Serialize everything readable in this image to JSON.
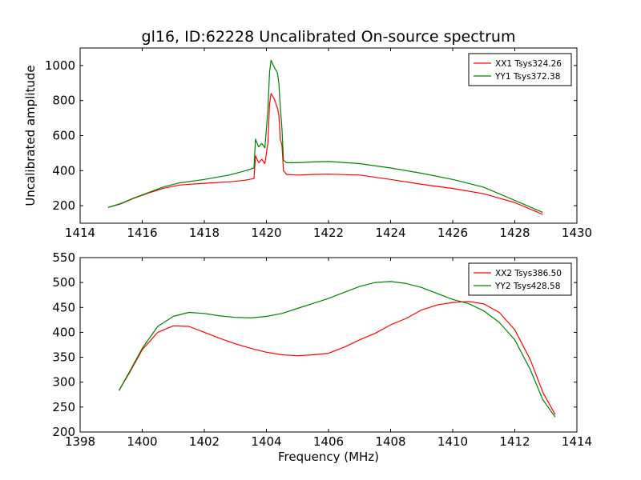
{
  "chart_data": [
    {
      "type": "line",
      "title": "gl16, ID:62228 Uncalibrated On-source spectrum",
      "xlabel": "",
      "ylabel": "Uncalibrated amplitude",
      "xlim": [
        1414,
        1430
      ],
      "ylim": [
        100,
        1100
      ],
      "xticks": [
        "1414",
        "1416",
        "1418",
        "1420",
        "1422",
        "1424",
        "1426",
        "1428",
        "1430"
      ],
      "yticks": [
        "200",
        "400",
        "600",
        "800",
        "1000"
      ],
      "legend_position": "top-right",
      "grid": false,
      "series": [
        {
          "name": "XX1 Tsys324.26",
          "color": "#ff0000",
          "points": [
            [
              1414.9,
              190
            ],
            [
              1415.3,
              210
            ],
            [
              1415.7,
              240
            ],
            [
              1416.2,
              272
            ],
            [
              1416.7,
              300
            ],
            [
              1417.2,
              318
            ],
            [
              1418.0,
              328
            ],
            [
              1418.8,
              336
            ],
            [
              1419.3,
              345
            ],
            [
              1419.6,
              355
            ],
            [
              1419.65,
              485
            ],
            [
              1419.75,
              445
            ],
            [
              1419.85,
              465
            ],
            [
              1419.95,
              440
            ],
            [
              1420.05,
              560
            ],
            [
              1420.1,
              780
            ],
            [
              1420.15,
              840
            ],
            [
              1420.25,
              810
            ],
            [
              1420.35,
              760
            ],
            [
              1420.4,
              720
            ],
            [
              1420.45,
              580
            ],
            [
              1420.5,
              545
            ],
            [
              1420.55,
              400
            ],
            [
              1420.65,
              378
            ],
            [
              1421.0,
              375
            ],
            [
              1421.5,
              378
            ],
            [
              1422.0,
              380
            ],
            [
              1423.0,
              375
            ],
            [
              1424.0,
              350
            ],
            [
              1425.0,
              322
            ],
            [
              1426.0,
              298
            ],
            [
              1427.0,
              268
            ],
            [
              1428.0,
              218
            ],
            [
              1428.9,
              150
            ]
          ]
        },
        {
          "name": "YY1 Tsys372.38",
          "color": "#008000",
          "points": [
            [
              1414.9,
              190
            ],
            [
              1415.3,
              212
            ],
            [
              1415.7,
              242
            ],
            [
              1416.2,
              275
            ],
            [
              1416.7,
              308
            ],
            [
              1417.2,
              330
            ],
            [
              1418.0,
              350
            ],
            [
              1418.8,
              375
            ],
            [
              1419.3,
              398
            ],
            [
              1419.6,
              415
            ],
            [
              1419.65,
              580
            ],
            [
              1419.75,
              535
            ],
            [
              1419.85,
              555
            ],
            [
              1419.95,
              530
            ],
            [
              1420.05,
              750
            ],
            [
              1420.1,
              960
            ],
            [
              1420.15,
              1030
            ],
            [
              1420.25,
              990
            ],
            [
              1420.35,
              960
            ],
            [
              1420.4,
              900
            ],
            [
              1420.45,
              760
            ],
            [
              1420.5,
              640
            ],
            [
              1420.55,
              460
            ],
            [
              1420.65,
              445
            ],
            [
              1421.0,
              445
            ],
            [
              1421.5,
              450
            ],
            [
              1422.0,
              452
            ],
            [
              1423.0,
              440
            ],
            [
              1424.0,
              415
            ],
            [
              1425.0,
              385
            ],
            [
              1426.0,
              350
            ],
            [
              1427.0,
              305
            ],
            [
              1428.0,
              230
            ],
            [
              1428.9,
              162
            ]
          ]
        }
      ]
    },
    {
      "type": "line",
      "title": "",
      "xlabel": "Frequency (MHz)",
      "ylabel": "",
      "xlim": [
        1398,
        1414
      ],
      "ylim": [
        200,
        550
      ],
      "xticks": [
        "1398",
        "1400",
        "1402",
        "1404",
        "1406",
        "1408",
        "1410",
        "1412",
        "1414"
      ],
      "yticks": [
        "200",
        "250",
        "300",
        "350",
        "400",
        "450",
        "500",
        "550"
      ],
      "legend_position": "top-right",
      "grid": false,
      "series": [
        {
          "name": "XX2 Tsys386.50",
          "color": "#ff0000",
          "points": [
            [
              1399.25,
              283
            ],
            [
              1399.6,
              320
            ],
            [
              1400.0,
              365
            ],
            [
              1400.5,
              400
            ],
            [
              1401.0,
              413
            ],
            [
              1401.5,
              412
            ],
            [
              1402.0,
              400
            ],
            [
              1402.5,
              388
            ],
            [
              1403.0,
              377
            ],
            [
              1403.5,
              368
            ],
            [
              1404.0,
              360
            ],
            [
              1404.5,
              355
            ],
            [
              1405.0,
              353
            ],
            [
              1405.5,
              355
            ],
            [
              1406.0,
              358
            ],
            [
              1406.5,
              370
            ],
            [
              1407.0,
              385
            ],
            [
              1407.5,
              398
            ],
            [
              1408.0,
              415
            ],
            [
              1408.5,
              428
            ],
            [
              1409.0,
              445
            ],
            [
              1409.5,
              455
            ],
            [
              1410.0,
              460
            ],
            [
              1410.5,
              462
            ],
            [
              1411.0,
              457
            ],
            [
              1411.5,
              440
            ],
            [
              1412.0,
              405
            ],
            [
              1412.5,
              345
            ],
            [
              1412.9,
              280
            ],
            [
              1413.3,
              235
            ]
          ]
        },
        {
          "name": "YY2 Tsys428.58",
          "color": "#008000",
          "points": [
            [
              1399.25,
              283
            ],
            [
              1399.6,
              322
            ],
            [
              1400.0,
              368
            ],
            [
              1400.5,
              412
            ],
            [
              1401.0,
              432
            ],
            [
              1401.5,
              440
            ],
            [
              1402.0,
              438
            ],
            [
              1402.5,
              433
            ],
            [
              1403.0,
              430
            ],
            [
              1403.5,
              429
            ],
            [
              1404.0,
              432
            ],
            [
              1404.5,
              438
            ],
            [
              1405.0,
              448
            ],
            [
              1405.5,
              458
            ],
            [
              1406.0,
              468
            ],
            [
              1406.5,
              480
            ],
            [
              1407.0,
              492
            ],
            [
              1407.5,
              500
            ],
            [
              1408.0,
              502
            ],
            [
              1408.5,
              498
            ],
            [
              1409.0,
              490
            ],
            [
              1409.5,
              478
            ],
            [
              1410.0,
              466
            ],
            [
              1410.5,
              458
            ],
            [
              1411.0,
              443
            ],
            [
              1411.5,
              420
            ],
            [
              1412.0,
              385
            ],
            [
              1412.5,
              325
            ],
            [
              1412.9,
              265
            ],
            [
              1413.3,
              230
            ]
          ]
        }
      ]
    }
  ]
}
